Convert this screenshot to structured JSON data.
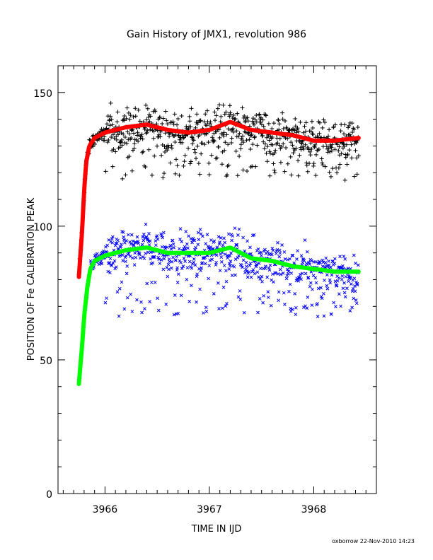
{
  "chart_data": {
    "type": "scatter",
    "title": "Gain History of JMX1, revolution 986",
    "xlabel": "TIME IN IJD",
    "ylabel": "POSITION OF Fe CALIBRATION PEAK",
    "xlim": [
      3965.55,
      3968.6
    ],
    "ylim": [
      0,
      160
    ],
    "x_ticks": [
      "3966",
      "3967",
      "3968"
    ],
    "y_ticks": [
      "0",
      "50",
      "100",
      "150"
    ],
    "footer": "oxborrow 22-Nov-2010 14:23",
    "series": [
      {
        "marker": "+",
        "color": "#000000",
        "x_start": 3965.75,
        "x_end": 3968.43,
        "n_points": 720,
        "envelope_x": [
          3965.75,
          3965.78,
          3965.8,
          3965.82,
          3965.85,
          3965.9,
          3966.0,
          3966.2,
          3966.4,
          3966.6,
          3966.8,
          3967.0,
          3967.2,
          3967.4,
          3967.6,
          3967.8,
          3968.0,
          3968.2,
          3968.43
        ],
        "envelope_y": [
          81,
          98,
          113,
          124,
          130,
          133,
          135,
          137,
          138,
          136,
          135,
          136,
          139,
          136,
          135,
          134,
          132,
          132,
          133
        ],
        "scatter_sd": 3.5,
        "outlier_low": 117
      },
      {
        "marker": "x",
        "color": "#0000ff",
        "x_start": 3965.75,
        "x_end": 3968.43,
        "n_points": 720,
        "envelope_x": [
          3965.75,
          3965.78,
          3965.8,
          3965.83,
          3965.86,
          3965.9,
          3966.0,
          3966.2,
          3966.4,
          3966.6,
          3966.8,
          3967.0,
          3967.2,
          3967.4,
          3967.6,
          3967.8,
          3968.0,
          3968.2,
          3968.43
        ],
        "envelope_y": [
          41,
          55,
          66,
          77,
          84,
          87,
          89,
          91,
          92,
          90,
          90,
          90,
          92,
          88,
          87,
          85,
          84,
          83,
          83
        ],
        "scatter_sd": 3.5,
        "outlier_low": 66
      },
      {
        "marker": "line",
        "color": "#ff0000",
        "x": [
          3965.75,
          3965.78,
          3965.8,
          3965.82,
          3965.85,
          3965.9,
          3966.0,
          3966.2,
          3966.4,
          3966.6,
          3966.8,
          3967.0,
          3967.2,
          3967.4,
          3967.6,
          3967.8,
          3968.0,
          3968.2,
          3968.43
        ],
        "y": [
          81,
          98,
          113,
          124,
          130,
          133,
          135,
          137,
          138,
          136,
          135,
          136,
          139,
          136,
          135,
          134,
          132,
          132,
          133
        ]
      },
      {
        "marker": "line",
        "color": "#00ff00",
        "x": [
          3965.75,
          3965.78,
          3965.8,
          3965.83,
          3965.86,
          3965.9,
          3966.0,
          3966.2,
          3966.4,
          3966.6,
          3966.8,
          3967.0,
          3967.2,
          3967.4,
          3967.6,
          3967.8,
          3968.0,
          3968.2,
          3968.43
        ],
        "y": [
          41,
          55,
          66,
          77,
          84,
          87,
          89,
          91,
          92,
          90,
          90,
          90,
          92,
          88,
          87,
          85,
          84,
          83,
          83
        ]
      }
    ]
  }
}
